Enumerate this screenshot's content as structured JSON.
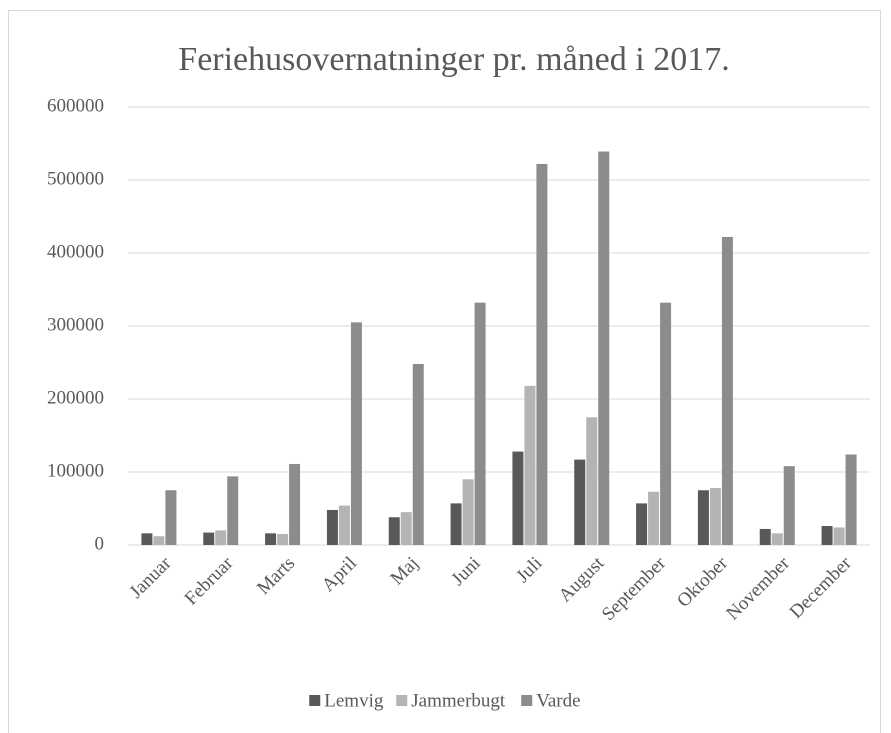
{
  "chart_data": {
    "type": "bar",
    "title": "Feriehusovernatninger pr. måned i 2017.",
    "categories": [
      "Januar",
      "Februar",
      "Marts",
      "April",
      "Maj",
      "Juni",
      "Juli",
      "August",
      "September",
      "Oktober",
      "November",
      "December"
    ],
    "series": [
      {
        "name": "Lemvig",
        "color": "#595959",
        "values": [
          16000,
          17000,
          16000,
          48000,
          38000,
          57000,
          128000,
          117000,
          57000,
          75000,
          22000,
          26000
        ]
      },
      {
        "name": "Jammerbugt",
        "color": "#b4b4b4",
        "values": [
          12000,
          20000,
          15000,
          54000,
          45000,
          90000,
          218000,
          175000,
          73000,
          78000,
          16000,
          24000
        ]
      },
      {
        "name": "Varde",
        "color": "#8c8c8c",
        "values": [
          75000,
          94000,
          111000,
          305000,
          248000,
          332000,
          522000,
          539000,
          332000,
          422000,
          108000,
          124000
        ]
      }
    ],
    "ylim": [
      0,
      600000
    ],
    "yticks": [
      0,
      100000,
      200000,
      300000,
      400000,
      500000,
      600000
    ],
    "grid": true,
    "legend": "bottom"
  }
}
